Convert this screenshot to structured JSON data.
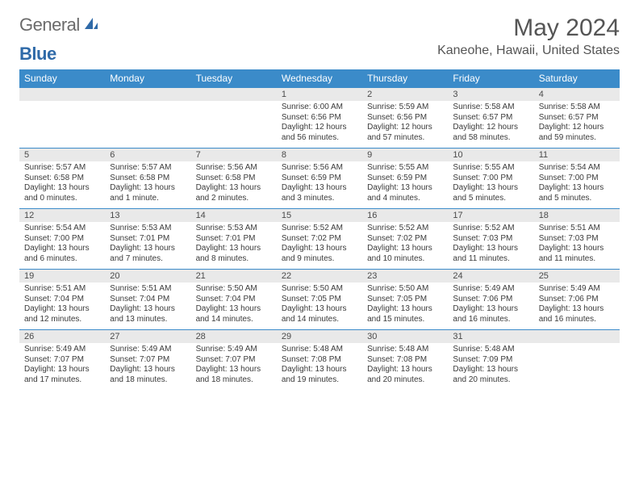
{
  "brand": {
    "part1": "General",
    "part2": "Blue"
  },
  "title": "May 2024",
  "location": "Kaneohe, Hawaii, United States",
  "colors": {
    "header_bg": "#3b8bc9",
    "header_fg": "#ffffff",
    "daynum_bg": "#e9e9e9",
    "rule": "#3b8bc9",
    "text": "#3a3a3a",
    "brand_gray": "#6b6b6b",
    "brand_blue": "#2f6aa8"
  },
  "dow": [
    "Sunday",
    "Monday",
    "Tuesday",
    "Wednesday",
    "Thursday",
    "Friday",
    "Saturday"
  ],
  "weeks": [
    [
      null,
      null,
      null,
      {
        "n": "1",
        "sr": "6:00 AM",
        "ss": "6:56 PM",
        "dl": "12 hours and 56 minutes."
      },
      {
        "n": "2",
        "sr": "5:59 AM",
        "ss": "6:56 PM",
        "dl": "12 hours and 57 minutes."
      },
      {
        "n": "3",
        "sr": "5:58 AM",
        "ss": "6:57 PM",
        "dl": "12 hours and 58 minutes."
      },
      {
        "n": "4",
        "sr": "5:58 AM",
        "ss": "6:57 PM",
        "dl": "12 hours and 59 minutes."
      }
    ],
    [
      {
        "n": "5",
        "sr": "5:57 AM",
        "ss": "6:58 PM",
        "dl": "13 hours and 0 minutes."
      },
      {
        "n": "6",
        "sr": "5:57 AM",
        "ss": "6:58 PM",
        "dl": "13 hours and 1 minute."
      },
      {
        "n": "7",
        "sr": "5:56 AM",
        "ss": "6:58 PM",
        "dl": "13 hours and 2 minutes."
      },
      {
        "n": "8",
        "sr": "5:56 AM",
        "ss": "6:59 PM",
        "dl": "13 hours and 3 minutes."
      },
      {
        "n": "9",
        "sr": "5:55 AM",
        "ss": "6:59 PM",
        "dl": "13 hours and 4 minutes."
      },
      {
        "n": "10",
        "sr": "5:55 AM",
        "ss": "7:00 PM",
        "dl": "13 hours and 5 minutes."
      },
      {
        "n": "11",
        "sr": "5:54 AM",
        "ss": "7:00 PM",
        "dl": "13 hours and 5 minutes."
      }
    ],
    [
      {
        "n": "12",
        "sr": "5:54 AM",
        "ss": "7:00 PM",
        "dl": "13 hours and 6 minutes."
      },
      {
        "n": "13",
        "sr": "5:53 AM",
        "ss": "7:01 PM",
        "dl": "13 hours and 7 minutes."
      },
      {
        "n": "14",
        "sr": "5:53 AM",
        "ss": "7:01 PM",
        "dl": "13 hours and 8 minutes."
      },
      {
        "n": "15",
        "sr": "5:52 AM",
        "ss": "7:02 PM",
        "dl": "13 hours and 9 minutes."
      },
      {
        "n": "16",
        "sr": "5:52 AM",
        "ss": "7:02 PM",
        "dl": "13 hours and 10 minutes."
      },
      {
        "n": "17",
        "sr": "5:52 AM",
        "ss": "7:03 PM",
        "dl": "13 hours and 11 minutes."
      },
      {
        "n": "18",
        "sr": "5:51 AM",
        "ss": "7:03 PM",
        "dl": "13 hours and 11 minutes."
      }
    ],
    [
      {
        "n": "19",
        "sr": "5:51 AM",
        "ss": "7:04 PM",
        "dl": "13 hours and 12 minutes."
      },
      {
        "n": "20",
        "sr": "5:51 AM",
        "ss": "7:04 PM",
        "dl": "13 hours and 13 minutes."
      },
      {
        "n": "21",
        "sr": "5:50 AM",
        "ss": "7:04 PM",
        "dl": "13 hours and 14 minutes."
      },
      {
        "n": "22",
        "sr": "5:50 AM",
        "ss": "7:05 PM",
        "dl": "13 hours and 14 minutes."
      },
      {
        "n": "23",
        "sr": "5:50 AM",
        "ss": "7:05 PM",
        "dl": "13 hours and 15 minutes."
      },
      {
        "n": "24",
        "sr": "5:49 AM",
        "ss": "7:06 PM",
        "dl": "13 hours and 16 minutes."
      },
      {
        "n": "25",
        "sr": "5:49 AM",
        "ss": "7:06 PM",
        "dl": "13 hours and 16 minutes."
      }
    ],
    [
      {
        "n": "26",
        "sr": "5:49 AM",
        "ss": "7:07 PM",
        "dl": "13 hours and 17 minutes."
      },
      {
        "n": "27",
        "sr": "5:49 AM",
        "ss": "7:07 PM",
        "dl": "13 hours and 18 minutes."
      },
      {
        "n": "28",
        "sr": "5:49 AM",
        "ss": "7:07 PM",
        "dl": "13 hours and 18 minutes."
      },
      {
        "n": "29",
        "sr": "5:48 AM",
        "ss": "7:08 PM",
        "dl": "13 hours and 19 minutes."
      },
      {
        "n": "30",
        "sr": "5:48 AM",
        "ss": "7:08 PM",
        "dl": "13 hours and 20 minutes."
      },
      {
        "n": "31",
        "sr": "5:48 AM",
        "ss": "7:09 PM",
        "dl": "13 hours and 20 minutes."
      },
      null
    ]
  ],
  "labels": {
    "sunrise": "Sunrise: ",
    "sunset": "Sunset: ",
    "daylight": "Daylight: "
  }
}
